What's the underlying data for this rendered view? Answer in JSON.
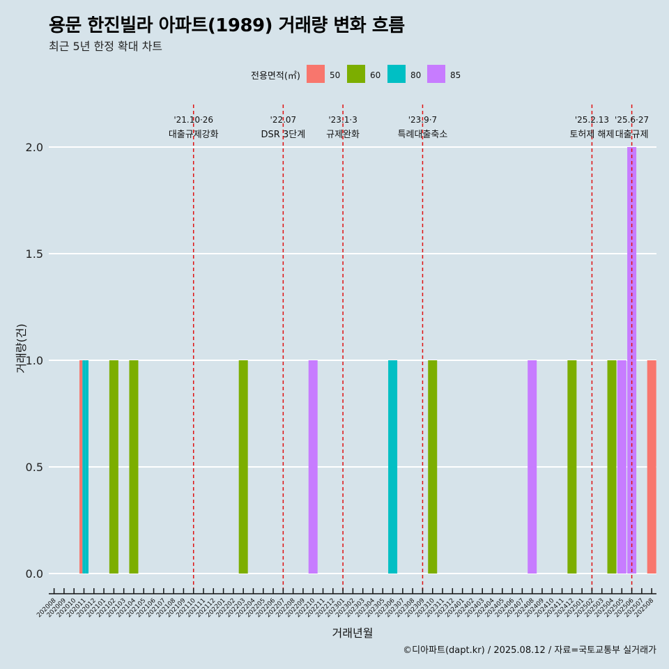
{
  "title": "용문 한진빌라 아파트(1989) 거래량 변화 흐름",
  "subtitle": "최근 5년 한정 확대 차트",
  "caption": "©디아파트(dapt.kr) / 2025.08.12 / 자료=국토교통부 실거래가",
  "chart_data": {
    "type": "bar",
    "xlabel": "거래년월",
    "ylabel": "거래량(건)",
    "ylim": [
      0,
      2
    ],
    "yticks": [
      0,
      0.5,
      1,
      1.5,
      2
    ],
    "ytick_labels": [
      "0.0",
      "0.5",
      "1.0",
      "1.5",
      "2.0"
    ],
    "grid": true,
    "legend": {
      "title": "전용면적(㎡)",
      "position": "top",
      "items": [
        {
          "label": "50",
          "color": "#f8766d"
        },
        {
          "label": "60",
          "color": "#7cae00"
        },
        {
          "label": "80",
          "color": "#00bfc4"
        },
        {
          "label": "85",
          "color": "#c77cff"
        }
      ]
    },
    "categories": [
      "202008",
      "202009",
      "202010",
      "202011",
      "202012",
      "202101",
      "202102",
      "202103",
      "202104",
      "202105",
      "202106",
      "202107",
      "202108",
      "202109",
      "202110",
      "202111",
      "202112",
      "202201",
      "202202",
      "202203",
      "202204",
      "202205",
      "202206",
      "202207",
      "202208",
      "202209",
      "202210",
      "202211",
      "202212",
      "202301",
      "202302",
      "202303",
      "202304",
      "202305",
      "202306",
      "202307",
      "202308",
      "202309",
      "202310",
      "202311",
      "202312",
      "202401",
      "202402",
      "202403",
      "202404",
      "202405",
      "202406",
      "202407",
      "202408",
      "202409",
      "202410",
      "202411",
      "202412",
      "202501",
      "202502",
      "202503",
      "202504",
      "202505",
      "202506",
      "202507",
      "202508"
    ],
    "bars": [
      {
        "month": "202011",
        "groups": [
          {
            "area": "50",
            "value": 1
          },
          {
            "area": "80",
            "value": 1
          },
          {
            "area": "80",
            "value": 1
          }
        ]
      },
      {
        "month": "202102",
        "groups": [
          {
            "area": "60",
            "value": 1
          }
        ]
      },
      {
        "month": "202104",
        "groups": [
          {
            "area": "60",
            "value": 1
          }
        ]
      },
      {
        "month": "202203",
        "groups": [
          {
            "area": "60",
            "value": 1
          }
        ]
      },
      {
        "month": "202210",
        "groups": [
          {
            "area": "85",
            "value": 1
          }
        ]
      },
      {
        "month": "202306",
        "groups": [
          {
            "area": "80",
            "value": 1
          }
        ]
      },
      {
        "month": "202310",
        "groups": [
          {
            "area": "60",
            "value": 1
          }
        ]
      },
      {
        "month": "202408",
        "groups": [
          {
            "area": "85",
            "value": 1
          }
        ]
      },
      {
        "month": "202412",
        "groups": [
          {
            "area": "60",
            "value": 1
          }
        ]
      },
      {
        "month": "202504",
        "groups": [
          {
            "area": "60",
            "value": 1
          }
        ]
      },
      {
        "month": "202505",
        "groups": [
          {
            "area": "85",
            "value": 1
          }
        ]
      },
      {
        "month": "202506",
        "groups": [
          {
            "area": "85",
            "value": 2
          }
        ]
      },
      {
        "month": "202508",
        "groups": [
          {
            "area": "50",
            "value": 1
          }
        ]
      }
    ],
    "events": [
      {
        "month": "202110",
        "date": "'21.10·26",
        "label": "대출규제강화"
      },
      {
        "month": "202207",
        "date": "'22.07",
        "label": "DSR 3단계"
      },
      {
        "month": "202301",
        "date": "'23.1·3",
        "label": "규제완화"
      },
      {
        "month": "202309",
        "date": "'23.9·7",
        "label": "특례대출축소"
      },
      {
        "month": "202502",
        "date": "'25.2.13",
        "label": "토허제 해제"
      },
      {
        "month": "202506",
        "date": "'25.6·27",
        "label": "대출규제"
      }
    ]
  }
}
